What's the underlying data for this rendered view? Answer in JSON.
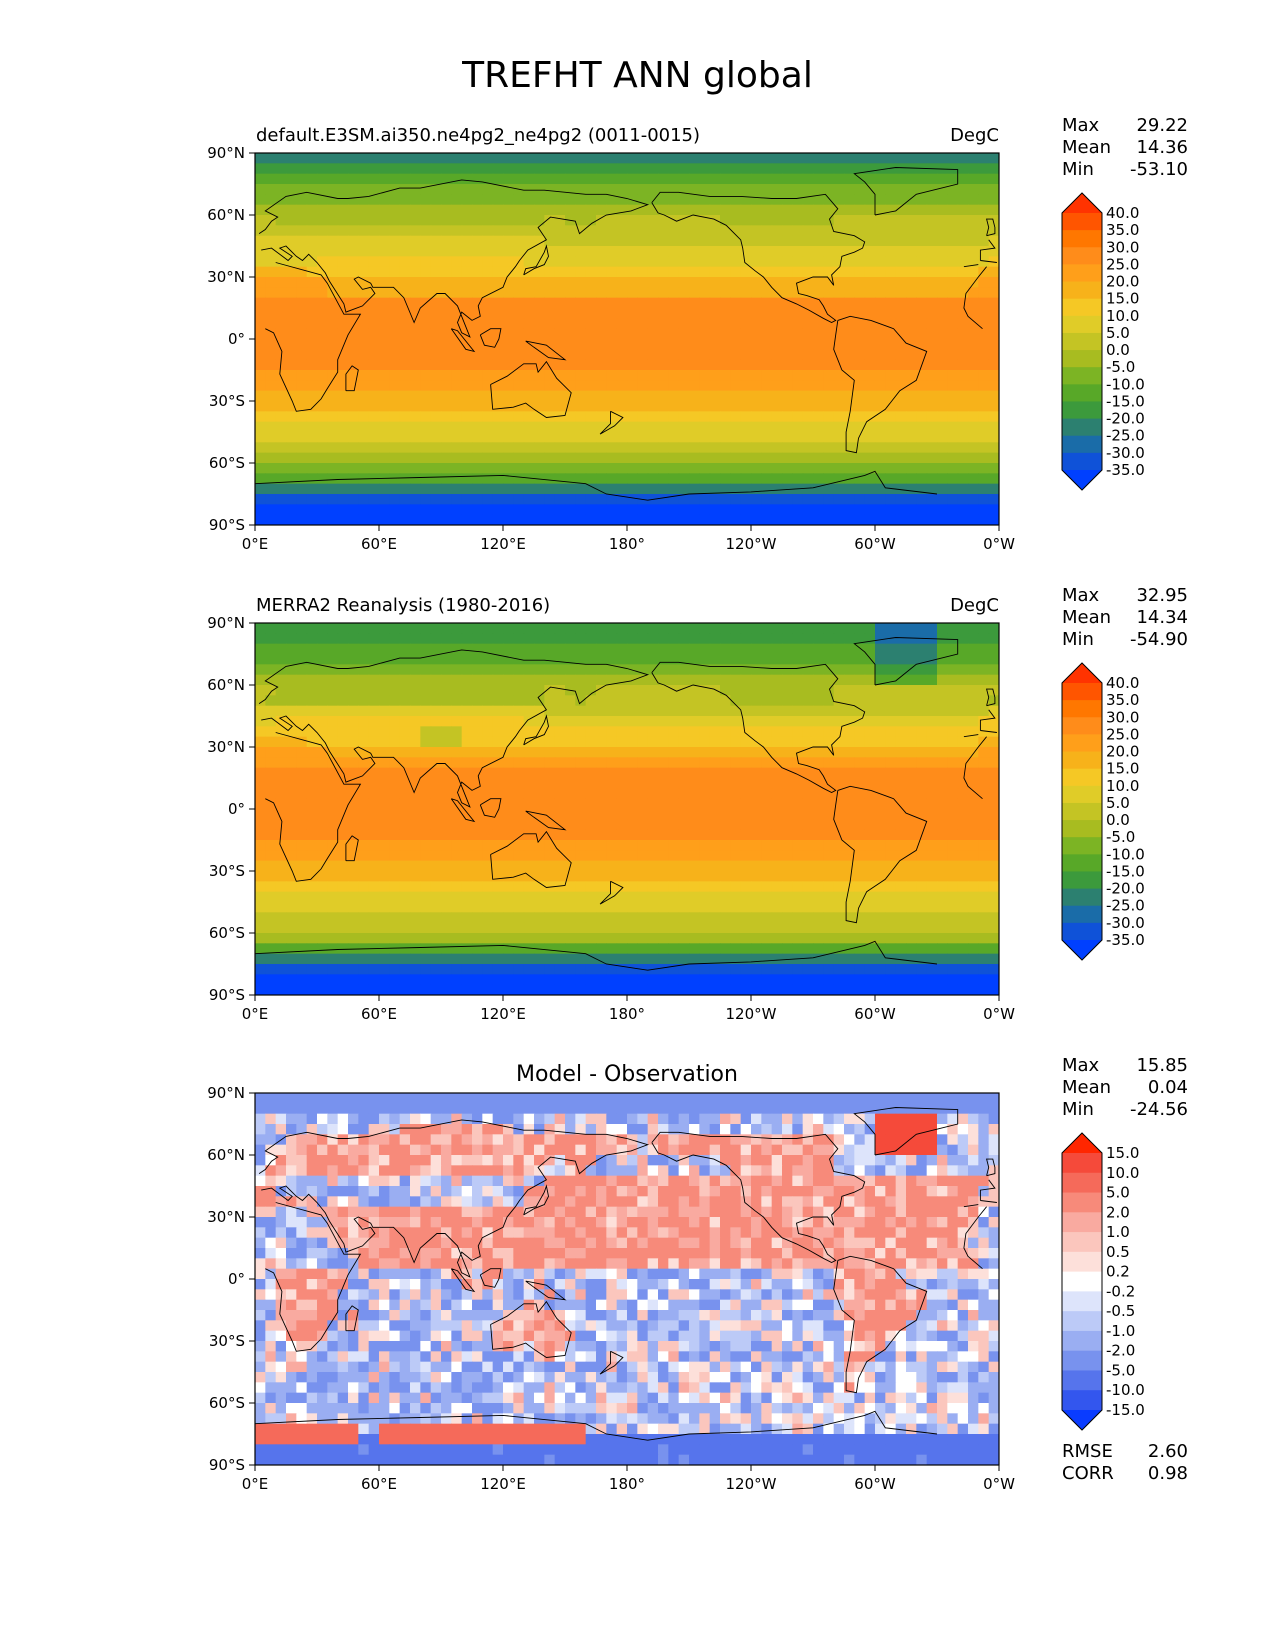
{
  "figure": {
    "title": "TREFHT ANN global"
  },
  "chart_data": [
    {
      "type": "heatmap",
      "subtitle_left": "default.E3SM.ai350.ne4pg2_ne4pg2 (0011-0015)",
      "subtitle_center": "",
      "units": "DegC",
      "stats": [
        {
          "label": "Max",
          "value": "29.22"
        },
        {
          "label": "Mean",
          "value": "14.36"
        },
        {
          "label": "Min",
          "value": "-53.10"
        }
      ],
      "extra_stats": [],
      "colorbar_ticks": [
        "40.0",
        "35.0",
        "30.0",
        "25.0",
        "20.0",
        "15.0",
        "10.0",
        "5.0",
        "0.0",
        "-5.0",
        "-10.0",
        "-15.0",
        "-20.0",
        "-25.0",
        "-30.0",
        "-35.0"
      ],
      "colorbar_colors": [
        "#ff3300",
        "#ff5500",
        "#ff7700",
        "#ff8c1a",
        "#ff9f1a",
        "#f7b21a",
        "#f5c825",
        "#e0cc28",
        "#c4c424",
        "#a8bc20",
        "#7cb424",
        "#58a828",
        "#3c9a3c",
        "#2c8070",
        "#1a6ca8",
        "#0f52d8",
        "#0040ff"
      ],
      "xticks": [
        "0°E",
        "60°E",
        "120°E",
        "180°",
        "120°W",
        "60°W",
        "0°W"
      ],
      "yticks": [
        "90°N",
        "60°N",
        "30°N",
        "0°",
        "30°S",
        "60°S",
        "90°S"
      ],
      "xlim": [
        0,
        360
      ],
      "ylim": [
        -90,
        90
      ],
      "latitude_band_means": [
        {
          "lat": 85,
          "value": -22
        },
        {
          "lat": 75,
          "value": -12
        },
        {
          "lat": 65,
          "value": -4
        },
        {
          "lat": 55,
          "value": 3
        },
        {
          "lat": 45,
          "value": 8
        },
        {
          "lat": 35,
          "value": 15
        },
        {
          "lat": 25,
          "value": 23
        },
        {
          "lat": 15,
          "value": 26
        },
        {
          "lat": 5,
          "value": 27
        },
        {
          "lat": -5,
          "value": 27
        },
        {
          "lat": -15,
          "value": 25
        },
        {
          "lat": -25,
          "value": 20
        },
        {
          "lat": -35,
          "value": 15
        },
        {
          "lat": -45,
          "value": 8
        },
        {
          "lat": -55,
          "value": 2
        },
        {
          "lat": -65,
          "value": -8
        },
        {
          "lat": -75,
          "value": -28
        },
        {
          "lat": -85,
          "value": -40
        }
      ]
    },
    {
      "type": "heatmap",
      "subtitle_left": "MERRA2 Reanalysis (1980-2016)",
      "subtitle_center": "",
      "units": "DegC",
      "stats": [
        {
          "label": "Max",
          "value": "32.95"
        },
        {
          "label": "Mean",
          "value": "14.34"
        },
        {
          "label": "Min",
          "value": "-54.90"
        }
      ],
      "extra_stats": [],
      "colorbar_ticks": [
        "40.0",
        "35.0",
        "30.0",
        "25.0",
        "20.0",
        "15.0",
        "10.0",
        "5.0",
        "0.0",
        "-5.0",
        "-10.0",
        "-15.0",
        "-20.0",
        "-25.0",
        "-30.0",
        "-35.0"
      ],
      "colorbar_colors": [
        "#ff3300",
        "#ff5500",
        "#ff7700",
        "#ff8c1a",
        "#ff9f1a",
        "#f7b21a",
        "#f5c825",
        "#e0cc28",
        "#c4c424",
        "#a8bc20",
        "#7cb424",
        "#58a828",
        "#3c9a3c",
        "#2c8070",
        "#1a6ca8",
        "#0f52d8",
        "#0040ff"
      ],
      "xticks": [
        "0°E",
        "60°E",
        "120°E",
        "180°",
        "120°W",
        "60°W",
        "0°W"
      ],
      "yticks": [
        "90°N",
        "60°N",
        "30°N",
        "0°",
        "30°S",
        "60°S",
        "90°S"
      ],
      "xlim": [
        0,
        360
      ],
      "ylim": [
        -90,
        90
      ],
      "latitude_band_means": [
        {
          "lat": 85,
          "value": -18
        },
        {
          "lat": 75,
          "value": -12
        },
        {
          "lat": 65,
          "value": -6
        },
        {
          "lat": 55,
          "value": 2
        },
        {
          "lat": 45,
          "value": 8
        },
        {
          "lat": 35,
          "value": 16
        },
        {
          "lat": 25,
          "value": 24
        },
        {
          "lat": 15,
          "value": 27
        },
        {
          "lat": 5,
          "value": 28
        },
        {
          "lat": -5,
          "value": 27
        },
        {
          "lat": -15,
          "value": 25
        },
        {
          "lat": -25,
          "value": 21
        },
        {
          "lat": -35,
          "value": 15
        },
        {
          "lat": -45,
          "value": 8
        },
        {
          "lat": -55,
          "value": 2
        },
        {
          "lat": -65,
          "value": -6
        },
        {
          "lat": -75,
          "value": -30
        },
        {
          "lat": -85,
          "value": -45
        }
      ]
    },
    {
      "type": "heatmap",
      "subtitle_left": "",
      "subtitle_center": "Model - Observation",
      "units": "",
      "stats": [
        {
          "label": "Max",
          "value": "15.85"
        },
        {
          "label": "Mean",
          "value": "0.04"
        },
        {
          "label": "Min",
          "value": "-24.56"
        }
      ],
      "extra_stats": [
        {
          "label": "RMSE",
          "value": "2.60"
        },
        {
          "label": "CORR",
          "value": "0.98"
        }
      ],
      "colorbar_ticks": [
        "15.0",
        "10.0",
        "5.0",
        "2.0",
        "1.0",
        "0.5",
        "0.2",
        "-0.2",
        "-0.5",
        "-1.0",
        "-2.0",
        "-5.0",
        "-10.0",
        "-15.0"
      ],
      "colorbar_colors": [
        "#ff2600",
        "#f54a3a",
        "#f56a5a",
        "#f78a7a",
        "#f9aaa0",
        "#fbc6bd",
        "#fde0da",
        "#ffffff",
        "#dde4fb",
        "#bccaf7",
        "#9aaef2",
        "#7892ee",
        "#5674ec",
        "#3356ee",
        "#0a3cff"
      ],
      "xticks": [
        "0°E",
        "60°E",
        "120°E",
        "180°",
        "120°W",
        "60°W",
        "0°W"
      ],
      "yticks": [
        "90°N",
        "60°N",
        "30°N",
        "0°",
        "30°S",
        "60°S",
        "90°S"
      ],
      "xlim": [
        0,
        360
      ],
      "ylim": [
        -90,
        90
      ]
    }
  ]
}
